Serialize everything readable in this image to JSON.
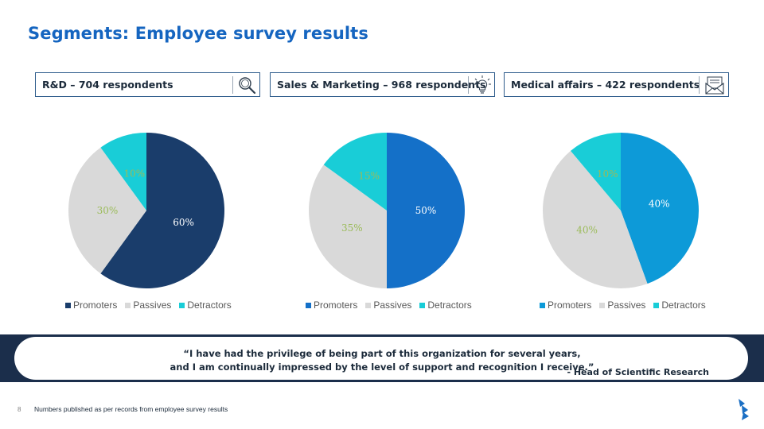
{
  "slide": {
    "title": "Segments: Employee survey results",
    "page_number": "8",
    "footnote": "Numbers published as per records from employee survey results"
  },
  "segments": [
    {
      "label": "R&D – 704 respondents",
      "icon": "magnifier-icon"
    },
    {
      "label": "Sales & Marketing – 968 respondents",
      "icon": "lightbulb-icon"
    },
    {
      "label": "Medical affairs – 422 respondents",
      "icon": "envelope-icon"
    }
  ],
  "legend": [
    "Promoters",
    "Passives",
    "Detractors"
  ],
  "quote": {
    "line1": "“I have had the privilege of being part of this organization for several years,",
    "line2": "and I am continually impressed by the level of support and recognition I receive.”",
    "author": "- Head of Scientific Research"
  },
  "colors": {
    "title": "#1565c0",
    "passives": "#d9d9d9",
    "detractors": "#19cdd7",
    "passive_label": "#9bbb59",
    "quote_band": "#1b2e4b"
  },
  "chart_data": [
    {
      "type": "pie",
      "categories": [
        "Promoters",
        "Passives",
        "Detractors"
      ],
      "values": [
        60,
        30,
        10
      ],
      "labels": [
        "60%",
        "30%",
        "10%"
      ],
      "colors": [
        "#1a3d6b",
        "#d9d9d9",
        "#19cdd7"
      ],
      "legend_position": "bottom"
    },
    {
      "type": "pie",
      "categories": [
        "Promoters",
        "Passives",
        "Detractors"
      ],
      "values": [
        50,
        35,
        15
      ],
      "labels": [
        "50%",
        "35%",
        "15%"
      ],
      "colors": [
        "#1470c8",
        "#d9d9d9",
        "#19cdd7"
      ],
      "legend_position": "bottom"
    },
    {
      "type": "pie",
      "categories": [
        "Promoters",
        "Passives",
        "Detractors"
      ],
      "values": [
        40,
        40,
        10
      ],
      "labels": [
        "40%",
        "40%",
        "10%"
      ],
      "colors": [
        "#0d9ad8",
        "#d9d9d9",
        "#19cdd7"
      ],
      "legend_position": "bottom"
    }
  ]
}
